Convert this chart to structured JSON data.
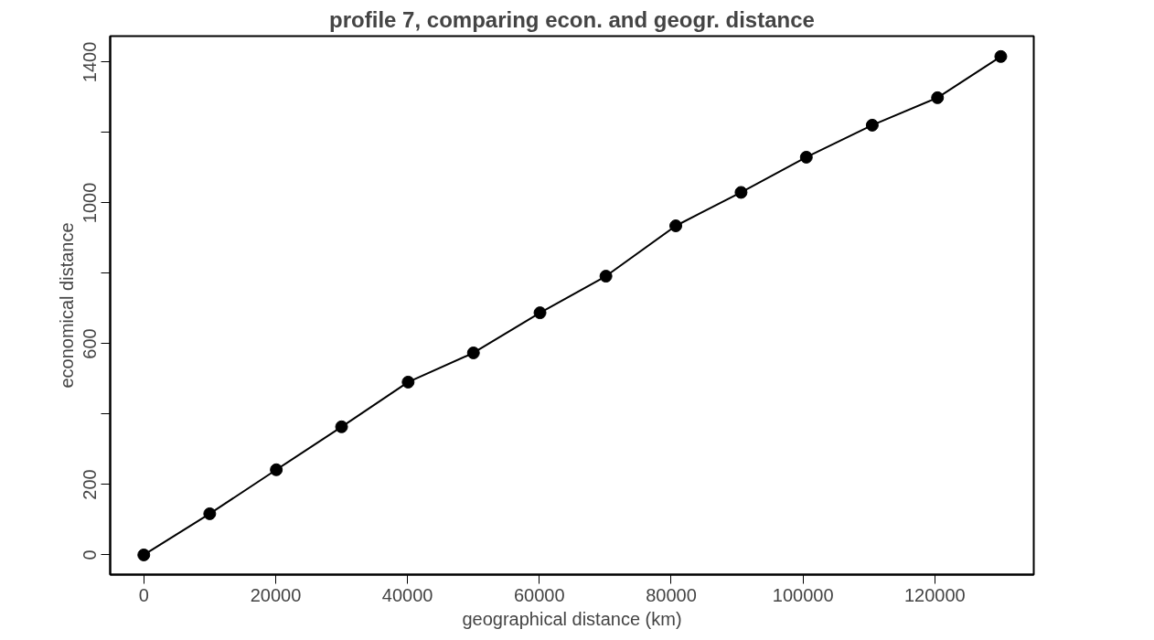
{
  "chart_data": {
    "type": "line",
    "title": "profile 7, comparing econ. and geogr. distance",
    "xlabel": "geographical distance (km)",
    "ylabel": "economical distance",
    "x": [
      0,
      10000,
      20100,
      30000,
      40100,
      50000,
      60100,
      70100,
      80700,
      90600,
      100500,
      110500,
      120400,
      130000
    ],
    "series": [
      {
        "color": "#000000",
        "values": [
          0,
          117,
          242,
          364,
          491,
          574,
          688,
          792,
          935,
          1030,
          1130,
          1221,
          1299,
          1416
        ]
      }
    ],
    "marker": "circle",
    "line_style": "solid",
    "grid": false,
    "xlim": [
      -5100,
      135000
    ],
    "ylim": [
      -56,
      1474
    ],
    "xticks": [
      0,
      20000,
      40000,
      60000,
      80000,
      100000,
      120000
    ],
    "yticks": [
      0,
      {
        "value": 200,
        "label": "200"
      },
      {
        "value": 400,
        "label": null
      },
      {
        "value": 600,
        "label": "600"
      },
      {
        "value": 800,
        "label": null
      },
      {
        "value": 1000,
        "label": "1000"
      },
      {
        "value": 1200,
        "label": null
      },
      {
        "value": 1400,
        "label": "1400"
      }
    ]
  }
}
